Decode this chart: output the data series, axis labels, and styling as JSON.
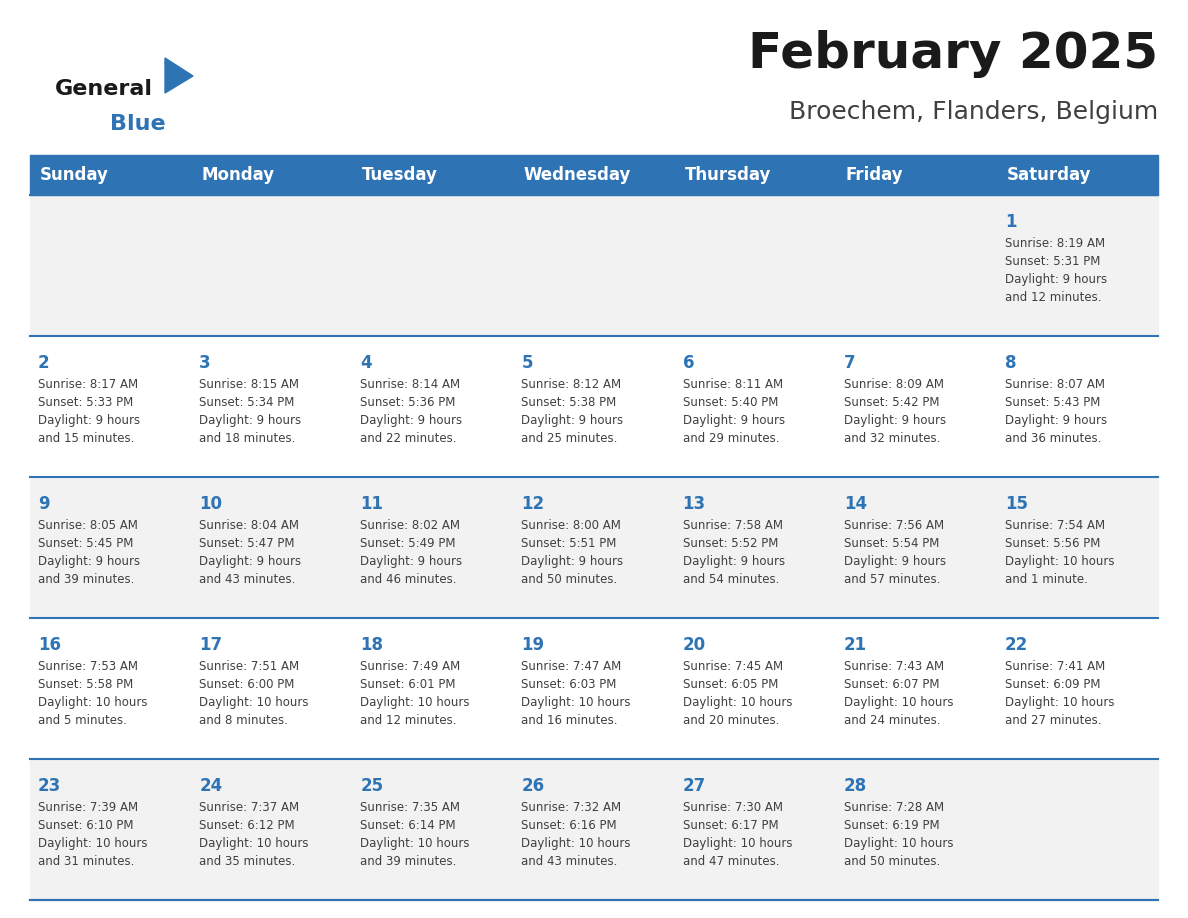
{
  "title": "February 2025",
  "subtitle": "Broechem, Flanders, Belgium",
  "days_of_week": [
    "Sunday",
    "Monday",
    "Tuesday",
    "Wednesday",
    "Thursday",
    "Friday",
    "Saturday"
  ],
  "header_bg": "#2E74B5",
  "header_text": "#FFFFFF",
  "row_bg_odd": "#F2F2F2",
  "row_bg_even": "#FFFFFF",
  "separator_color": "#2E74B5",
  "day_num_color": "#2E74B5",
  "info_color": "#404040",
  "title_color": "#1a1a1a",
  "subtitle_color": "#404040",
  "logo_general_color": "#1a1a1a",
  "logo_blue_color": "#2E74B5",
  "weeks": [
    [
      {
        "day": null,
        "info": ""
      },
      {
        "day": null,
        "info": ""
      },
      {
        "day": null,
        "info": ""
      },
      {
        "day": null,
        "info": ""
      },
      {
        "day": null,
        "info": ""
      },
      {
        "day": null,
        "info": ""
      },
      {
        "day": 1,
        "info": "Sunrise: 8:19 AM\nSunset: 5:31 PM\nDaylight: 9 hours\nand 12 minutes."
      }
    ],
    [
      {
        "day": 2,
        "info": "Sunrise: 8:17 AM\nSunset: 5:33 PM\nDaylight: 9 hours\nand 15 minutes."
      },
      {
        "day": 3,
        "info": "Sunrise: 8:15 AM\nSunset: 5:34 PM\nDaylight: 9 hours\nand 18 minutes."
      },
      {
        "day": 4,
        "info": "Sunrise: 8:14 AM\nSunset: 5:36 PM\nDaylight: 9 hours\nand 22 minutes."
      },
      {
        "day": 5,
        "info": "Sunrise: 8:12 AM\nSunset: 5:38 PM\nDaylight: 9 hours\nand 25 minutes."
      },
      {
        "day": 6,
        "info": "Sunrise: 8:11 AM\nSunset: 5:40 PM\nDaylight: 9 hours\nand 29 minutes."
      },
      {
        "day": 7,
        "info": "Sunrise: 8:09 AM\nSunset: 5:42 PM\nDaylight: 9 hours\nand 32 minutes."
      },
      {
        "day": 8,
        "info": "Sunrise: 8:07 AM\nSunset: 5:43 PM\nDaylight: 9 hours\nand 36 minutes."
      }
    ],
    [
      {
        "day": 9,
        "info": "Sunrise: 8:05 AM\nSunset: 5:45 PM\nDaylight: 9 hours\nand 39 minutes."
      },
      {
        "day": 10,
        "info": "Sunrise: 8:04 AM\nSunset: 5:47 PM\nDaylight: 9 hours\nand 43 minutes."
      },
      {
        "day": 11,
        "info": "Sunrise: 8:02 AM\nSunset: 5:49 PM\nDaylight: 9 hours\nand 46 minutes."
      },
      {
        "day": 12,
        "info": "Sunrise: 8:00 AM\nSunset: 5:51 PM\nDaylight: 9 hours\nand 50 minutes."
      },
      {
        "day": 13,
        "info": "Sunrise: 7:58 AM\nSunset: 5:52 PM\nDaylight: 9 hours\nand 54 minutes."
      },
      {
        "day": 14,
        "info": "Sunrise: 7:56 AM\nSunset: 5:54 PM\nDaylight: 9 hours\nand 57 minutes."
      },
      {
        "day": 15,
        "info": "Sunrise: 7:54 AM\nSunset: 5:56 PM\nDaylight: 10 hours\nand 1 minute."
      }
    ],
    [
      {
        "day": 16,
        "info": "Sunrise: 7:53 AM\nSunset: 5:58 PM\nDaylight: 10 hours\nand 5 minutes."
      },
      {
        "day": 17,
        "info": "Sunrise: 7:51 AM\nSunset: 6:00 PM\nDaylight: 10 hours\nand 8 minutes."
      },
      {
        "day": 18,
        "info": "Sunrise: 7:49 AM\nSunset: 6:01 PM\nDaylight: 10 hours\nand 12 minutes."
      },
      {
        "day": 19,
        "info": "Sunrise: 7:47 AM\nSunset: 6:03 PM\nDaylight: 10 hours\nand 16 minutes."
      },
      {
        "day": 20,
        "info": "Sunrise: 7:45 AM\nSunset: 6:05 PM\nDaylight: 10 hours\nand 20 minutes."
      },
      {
        "day": 21,
        "info": "Sunrise: 7:43 AM\nSunset: 6:07 PM\nDaylight: 10 hours\nand 24 minutes."
      },
      {
        "day": 22,
        "info": "Sunrise: 7:41 AM\nSunset: 6:09 PM\nDaylight: 10 hours\nand 27 minutes."
      }
    ],
    [
      {
        "day": 23,
        "info": "Sunrise: 7:39 AM\nSunset: 6:10 PM\nDaylight: 10 hours\nand 31 minutes."
      },
      {
        "day": 24,
        "info": "Sunrise: 7:37 AM\nSunset: 6:12 PM\nDaylight: 10 hours\nand 35 minutes."
      },
      {
        "day": 25,
        "info": "Sunrise: 7:35 AM\nSunset: 6:14 PM\nDaylight: 10 hours\nand 39 minutes."
      },
      {
        "day": 26,
        "info": "Sunrise: 7:32 AM\nSunset: 6:16 PM\nDaylight: 10 hours\nand 43 minutes."
      },
      {
        "day": 27,
        "info": "Sunrise: 7:30 AM\nSunset: 6:17 PM\nDaylight: 10 hours\nand 47 minutes."
      },
      {
        "day": 28,
        "info": "Sunrise: 7:28 AM\nSunset: 6:19 PM\nDaylight: 10 hours\nand 50 minutes."
      },
      {
        "day": null,
        "info": ""
      }
    ]
  ]
}
